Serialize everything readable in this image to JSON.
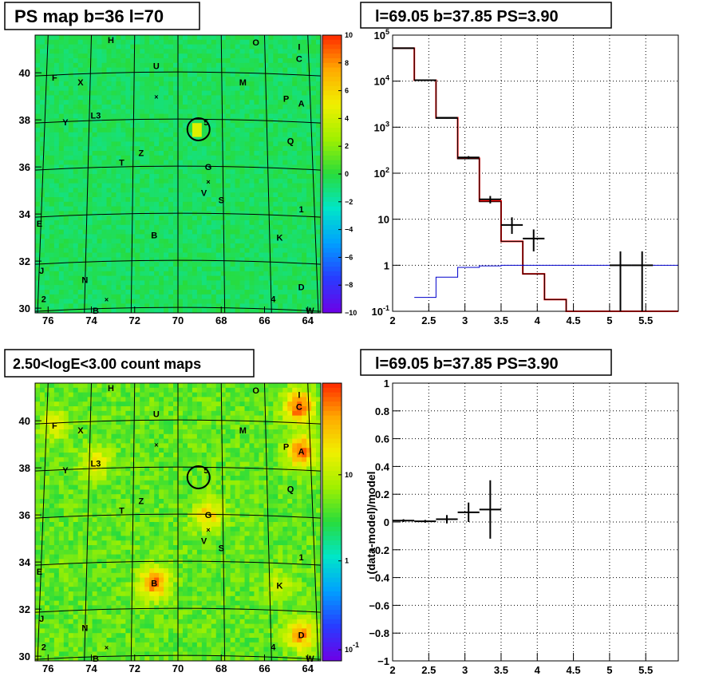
{
  "panels": {
    "ps_map": {
      "title": "PS map b=36 l=70"
    },
    "spectrum": {
      "title": "l=69.05 b=37.85 PS=3.90"
    },
    "count_map": {
      "title": "2.50<logE<3.00 count maps"
    },
    "residual": {
      "title": "l=69.05 b=37.85 PS=3.90",
      "ylabel": "(data-model)/model"
    }
  },
  "colors": {
    "data": "#000000",
    "model": "#ff0000",
    "background": "#0000cc",
    "grid": "#000000"
  },
  "chart_data": [
    {
      "type": "heatmap",
      "title": "PS map b=36 l=70",
      "x_ticks": [
        "76",
        "74",
        "72",
        "70",
        "68",
        "66",
        "64"
      ],
      "y_ticks": [
        "30",
        "32",
        "34",
        "36",
        "38",
        "40"
      ],
      "xlim": [
        76.6,
        63.4
      ],
      "ylim": [
        29.8,
        41.6
      ],
      "colorbar": {
        "ticks": [
          "10",
          "8",
          "6",
          "4",
          "2",
          "0",
          "−2",
          "−4",
          "−6",
          "−8",
          "−10"
        ],
        "range": [
          -10,
          10
        ],
        "scale": "linear"
      },
      "grid": true,
      "circle": {
        "l": 69.05,
        "b": 37.6
      },
      "source_labels": [
        {
          "text": "H",
          "l": 73.1,
          "b": 41.4
        },
        {
          "text": "O",
          "l": 66.4,
          "b": 41.3
        },
        {
          "text": "I",
          "l": 64.4,
          "b": 41.1
        },
        {
          "text": "C",
          "l": 64.4,
          "b": 40.6
        },
        {
          "text": "U",
          "l": 71.0,
          "b": 40.3
        },
        {
          "text": "F",
          "l": 75.7,
          "b": 39.8
        },
        {
          "text": "X",
          "l": 74.5,
          "b": 39.6
        },
        {
          "text": "M",
          "l": 67.0,
          "b": 39.6
        },
        {
          "text": "P",
          "l": 65.0,
          "b": 38.9
        },
        {
          "text": "A",
          "l": 64.3,
          "b": 38.7
        },
        {
          "text": "L3",
          "l": 73.8,
          "b": 38.2
        },
        {
          "text": "Y",
          "l": 75.2,
          "b": 37.9
        },
        {
          "text": "5",
          "l": 68.7,
          "b": 37.9
        },
        {
          "text": "Q",
          "l": 64.8,
          "b": 37.1
        },
        {
          "text": "Z",
          "l": 71.7,
          "b": 36.6
        },
        {
          "text": "T",
          "l": 72.6,
          "b": 36.2
        },
        {
          "text": "G",
          "l": 68.6,
          "b": 36.0
        },
        {
          "text": "V",
          "l": 68.8,
          "b": 34.9
        },
        {
          "text": "S",
          "l": 68.0,
          "b": 34.6
        },
        {
          "text": "1",
          "l": 64.3,
          "b": 34.2
        },
        {
          "text": "E",
          "l": 76.4,
          "b": 33.6
        },
        {
          "text": "B",
          "l": 71.1,
          "b": 33.1
        },
        {
          "text": "K",
          "l": 65.3,
          "b": 33.0
        },
        {
          "text": "J",
          "l": 76.3,
          "b": 31.6
        },
        {
          "text": "N",
          "l": 74.3,
          "b": 31.2
        },
        {
          "text": "D",
          "l": 64.3,
          "b": 30.9
        },
        {
          "text": "2",
          "l": 76.2,
          "b": 30.4
        },
        {
          "text": "4",
          "l": 65.6,
          "b": 30.4
        },
        {
          "text": "B",
          "l": 73.8,
          "b": 29.9
        },
        {
          "text": "W",
          "l": 63.9,
          "b": 29.9
        }
      ]
    },
    {
      "type": "line",
      "title": "l=69.05 b=37.85 PS=3.90",
      "xlabel": "",
      "ylabel": "",
      "xlim": [
        2,
        5.95
      ],
      "ylim": [
        0.1,
        100000
      ],
      "yscale": "log",
      "x_ticks": [
        "2",
        "2.5",
        "3",
        "3.5",
        "4",
        "4.5",
        "5",
        "5.5"
      ],
      "y_ticks": [
        "10^-1",
        "1",
        "10",
        "10^2",
        "10^3",
        "10^4",
        "10^5"
      ],
      "grid": true,
      "series": [
        {
          "kind": "model_step",
          "color": "#ff0000",
          "edges": [
            2.0,
            2.3,
            2.6,
            2.9,
            3.2,
            3.5,
            3.8,
            4.1,
            4.4,
            4.7,
            5.0,
            5.3,
            5.6,
            5.95
          ],
          "values": [
            52000,
            10500,
            1600,
            210,
            25,
            3.3,
            0.65,
            0.18,
            0.1,
            0.1,
            0.1,
            0.1,
            0.1
          ]
        },
        {
          "kind": "model_step",
          "color": "#000000",
          "edges": [
            2.0,
            2.3,
            2.6,
            2.9,
            3.2,
            3.5,
            3.8,
            4.1,
            4.4,
            4.7,
            5.0,
            5.3,
            5.6,
            5.95
          ],
          "values": [
            52000,
            10500,
            1550,
            205,
            24,
            3.3,
            0.65,
            0.18,
            0.1,
            0.1,
            0.1,
            0.1,
            0.1
          ]
        },
        {
          "kind": "background_step",
          "color": "#0000cc",
          "edges": [
            2.3,
            2.6,
            2.9,
            3.2,
            3.5,
            3.8,
            4.1,
            4.4,
            4.7,
            5.0,
            5.3,
            5.6,
            5.95
          ],
          "values": [
            0.2,
            0.55,
            0.9,
            0.97,
            1.0,
            1.0,
            1.0,
            1.0,
            1.0,
            1.0,
            1.0,
            1.0
          ]
        },
        {
          "kind": "data_points",
          "color": "#000000",
          "points": [
            {
              "x": 2.15,
              "y": 52000,
              "xerr": 0.15,
              "ylo": 51000,
              "yhi": 53000
            },
            {
              "x": 2.45,
              "y": 10500,
              "xerr": 0.15,
              "ylo": 10300,
              "yhi": 10700
            },
            {
              "x": 2.75,
              "y": 1600,
              "xerr": 0.15,
              "ylo": 1540,
              "yhi": 1660
            },
            {
              "x": 3.05,
              "y": 220,
              "xerr": 0.15,
              "ylo": 205,
              "yhi": 235
            },
            {
              "x": 3.35,
              "y": 27,
              "xerr": 0.15,
              "ylo": 22,
              "yhi": 32
            },
            {
              "x": 3.65,
              "y": 7.5,
              "xerr": 0.15,
              "ylo": 4.8,
              "yhi": 11
            },
            {
              "x": 3.95,
              "y": 3.8,
              "xerr": 0.15,
              "ylo": 2.0,
              "yhi": 6.0
            },
            {
              "x": 5.15,
              "y": 1.0,
              "xerr": 0.15,
              "ylo": 0.1,
              "yhi": 2.0
            },
            {
              "x": 5.45,
              "y": 1.0,
              "xerr": 0.15,
              "ylo": 0.1,
              "yhi": 2.0
            }
          ]
        }
      ]
    },
    {
      "type": "heatmap",
      "title": "2.50<logE<3.00 count maps",
      "x_ticks": [
        "76",
        "74",
        "72",
        "70",
        "68",
        "66",
        "64"
      ],
      "y_ticks": [
        "30",
        "32",
        "34",
        "36",
        "38",
        "40"
      ],
      "xlim": [
        76.6,
        63.4
      ],
      "ylim": [
        29.8,
        41.6
      ],
      "colorbar": {
        "ticks": [
          "10",
          "1",
          "10^-1"
        ],
        "scale": "log"
      },
      "grid": true,
      "circle": {
        "l": 69.05,
        "b": 37.6
      },
      "hotspots": [
        {
          "label": "C",
          "l": 64.4,
          "b": 40.6,
          "strength": 1.0
        },
        {
          "label": "A",
          "l": 64.3,
          "b": 38.7,
          "strength": 0.9
        },
        {
          "label": "B",
          "l": 71.1,
          "b": 33.1,
          "strength": 0.9
        },
        {
          "label": "D",
          "l": 64.3,
          "b": 30.9,
          "strength": 0.8
        },
        {
          "label": "G",
          "l": 68.6,
          "b": 36.0,
          "strength": 0.6
        },
        {
          "label": "L3",
          "l": 73.8,
          "b": 38.2,
          "strength": 0.5
        },
        {
          "label": "F",
          "l": 75.7,
          "b": 39.8,
          "strength": 0.4
        },
        {
          "label": "K",
          "l": 65.3,
          "b": 33.0,
          "strength": 0.3
        }
      ],
      "source_labels": [
        {
          "text": "H",
          "l": 73.1,
          "b": 41.4
        },
        {
          "text": "O",
          "l": 66.4,
          "b": 41.3
        },
        {
          "text": "I",
          "l": 64.4,
          "b": 41.1
        },
        {
          "text": "C",
          "l": 64.4,
          "b": 40.6
        },
        {
          "text": "U",
          "l": 71.0,
          "b": 40.3
        },
        {
          "text": "F",
          "l": 75.7,
          "b": 39.8
        },
        {
          "text": "X",
          "l": 74.5,
          "b": 39.6
        },
        {
          "text": "M",
          "l": 67.0,
          "b": 39.6
        },
        {
          "text": "P",
          "l": 65.0,
          "b": 38.9
        },
        {
          "text": "A",
          "l": 64.3,
          "b": 38.7
        },
        {
          "text": "L3",
          "l": 73.8,
          "b": 38.2
        },
        {
          "text": "Y",
          "l": 75.2,
          "b": 37.9
        },
        {
          "text": "5",
          "l": 68.7,
          "b": 37.9
        },
        {
          "text": "Q",
          "l": 64.8,
          "b": 37.1
        },
        {
          "text": "Z",
          "l": 71.7,
          "b": 36.6
        },
        {
          "text": "T",
          "l": 72.6,
          "b": 36.2
        },
        {
          "text": "G",
          "l": 68.6,
          "b": 36.0
        },
        {
          "text": "V",
          "l": 68.8,
          "b": 34.9
        },
        {
          "text": "S",
          "l": 68.0,
          "b": 34.6
        },
        {
          "text": "1",
          "l": 64.3,
          "b": 34.2
        },
        {
          "text": "E",
          "l": 76.4,
          "b": 33.6
        },
        {
          "text": "B",
          "l": 71.1,
          "b": 33.1
        },
        {
          "text": "K",
          "l": 65.3,
          "b": 33.0
        },
        {
          "text": "J",
          "l": 76.3,
          "b": 31.6
        },
        {
          "text": "N",
          "l": 74.3,
          "b": 31.2
        },
        {
          "text": "D",
          "l": 64.3,
          "b": 30.9
        },
        {
          "text": "2",
          "l": 76.2,
          "b": 30.4
        },
        {
          "text": "4",
          "l": 65.6,
          "b": 30.4
        },
        {
          "text": "B",
          "l": 73.8,
          "b": 29.9
        },
        {
          "text": "W",
          "l": 63.9,
          "b": 29.9
        }
      ]
    },
    {
      "type": "scatter",
      "title": "l=69.05 b=37.85 PS=3.90",
      "xlabel": "",
      "ylabel": "(data-model)/model",
      "xlim": [
        2,
        5.95
      ],
      "ylim": [
        -1,
        1
      ],
      "x_ticks": [
        "2",
        "2.5",
        "3",
        "3.5",
        "4",
        "4.5",
        "5",
        "5.5"
      ],
      "y_ticks": [
        "−1",
        "−0.8",
        "−0.6",
        "−0.4",
        "−0.2",
        "0",
        "0.2",
        "0.4",
        "0.6",
        "0.8",
        "1"
      ],
      "grid": true,
      "points": [
        {
          "x": 2.15,
          "y": 0.01,
          "xerr": 0.15,
          "yerr": 0.01
        },
        {
          "x": 2.45,
          "y": 0.005,
          "xerr": 0.15,
          "yerr": 0.01
        },
        {
          "x": 2.75,
          "y": 0.02,
          "xerr": 0.15,
          "yerr": 0.03
        },
        {
          "x": 3.05,
          "y": 0.07,
          "xerr": 0.15,
          "yerr": 0.07
        },
        {
          "x": 3.35,
          "y": 0.09,
          "xerr": 0.15,
          "yerr": 0.21
        }
      ]
    }
  ]
}
